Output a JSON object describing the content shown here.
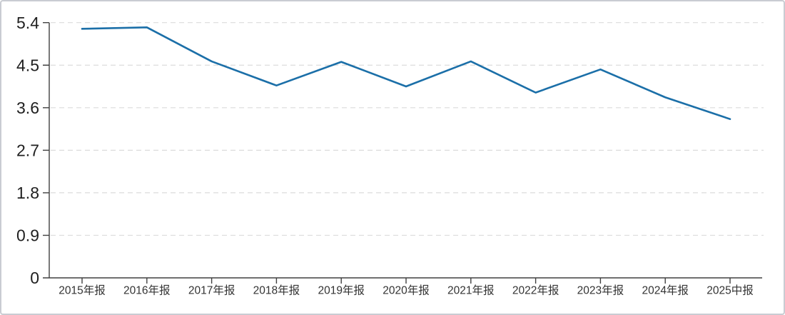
{
  "chart_data": {
    "type": "line",
    "title": "",
    "xlabel": "",
    "ylabel": "",
    "legend": "none",
    "grid": "horizontal-dashed",
    "categories": [
      "2015年报",
      "2016年报",
      "2017年报",
      "2018年报",
      "2019年报",
      "2020年报",
      "2021年报",
      "2022年报",
      "2023年报",
      "2024年报",
      "2025中报"
    ],
    "values": [
      5.27,
      5.3,
      4.58,
      4.07,
      4.57,
      4.05,
      4.58,
      3.92,
      4.41,
      3.82,
      3.36
    ],
    "ylim": [
      0,
      5.4
    ],
    "y_tick_values": [
      0,
      0.9,
      1.8,
      2.7,
      3.6,
      4.5,
      5.4
    ],
    "y_tick_labels": [
      "0",
      "0.9",
      "1.8",
      "2.7",
      "3.6",
      "4.5",
      "5.4"
    ],
    "colors": {
      "line": "#1b6fa8",
      "axis": "#404040",
      "grid": "#dcdcdc",
      "y_label": "#1f1f1f",
      "x_label": "#333333",
      "background": "#ffffff",
      "border": "#c9ccd2"
    }
  }
}
